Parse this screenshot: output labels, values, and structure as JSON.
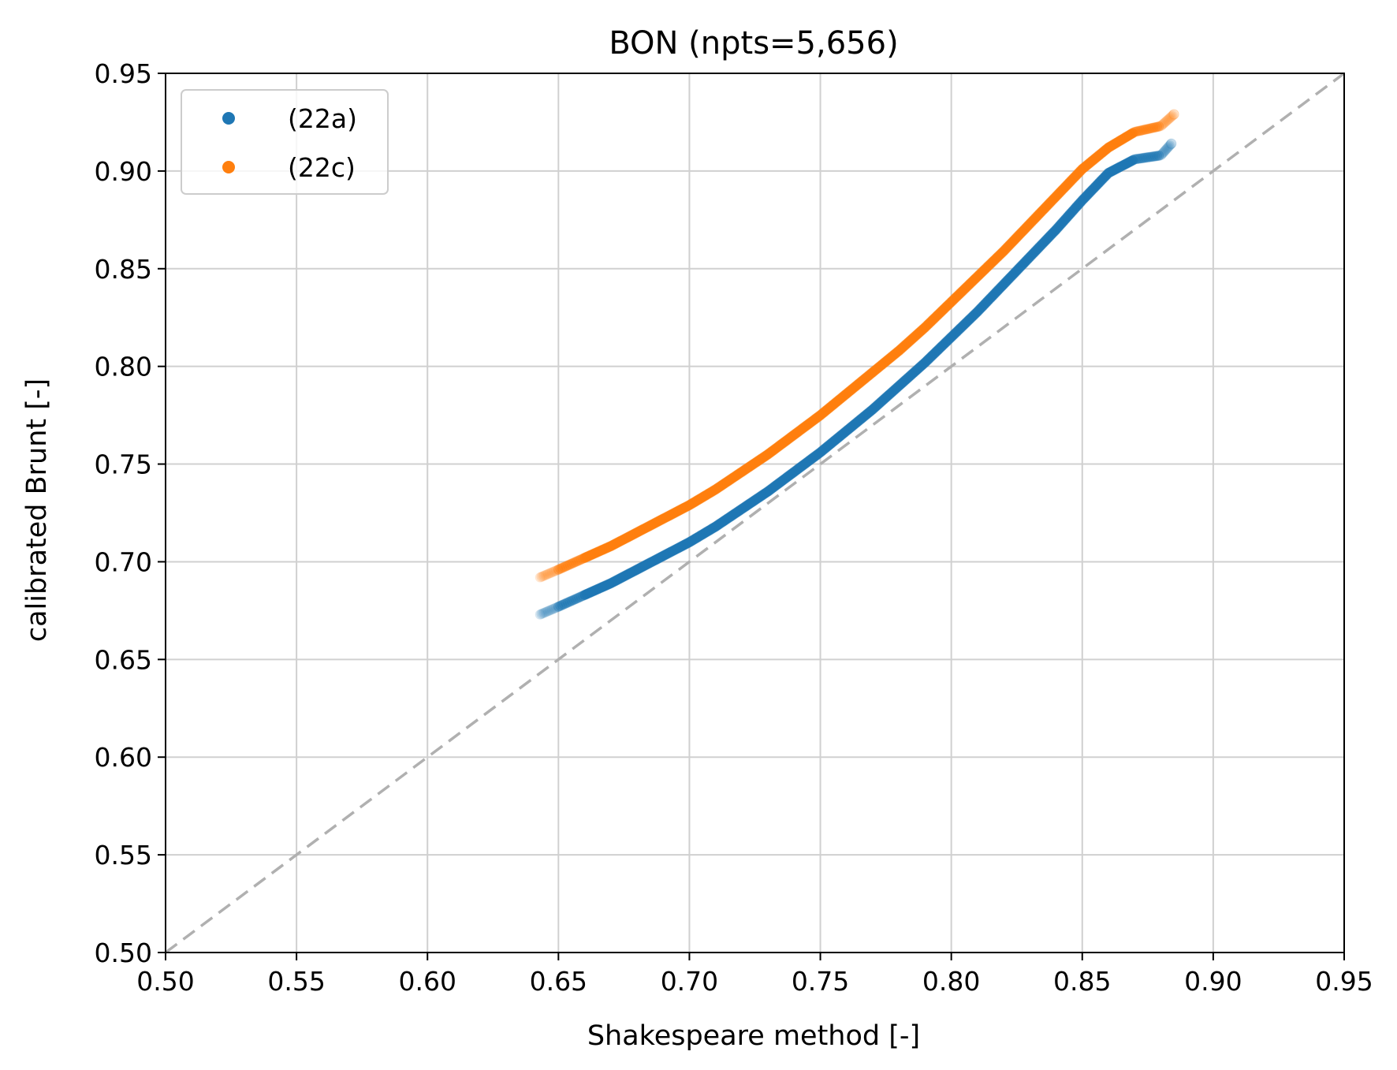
{
  "chart_data": {
    "type": "scatter",
    "title": "BON (npts=5,656)",
    "xlabel": "Shakespeare method [-]",
    "ylabel": "calibrated Brunt [-]",
    "xlim": [
      0.5,
      0.95
    ],
    "ylim": [
      0.5,
      0.95
    ],
    "xticks": [
      "0.50",
      "0.55",
      "0.60",
      "0.65",
      "0.70",
      "0.75",
      "0.80",
      "0.85",
      "0.90",
      "0.95"
    ],
    "yticks": [
      "0.50",
      "0.55",
      "0.60",
      "0.65",
      "0.70",
      "0.75",
      "0.80",
      "0.85",
      "0.90",
      "0.95"
    ],
    "grid": true,
    "legend_position": "top-left",
    "reference_line": {
      "style": "dashed",
      "color": "#b0b0b0",
      "from": [
        0.5,
        0.5
      ],
      "to": [
        0.95,
        0.95
      ]
    },
    "series": [
      {
        "name": "(22a)",
        "color": "#1f77b4",
        "x": [
          0.643,
          0.65,
          0.66,
          0.67,
          0.68,
          0.69,
          0.7,
          0.71,
          0.72,
          0.73,
          0.74,
          0.75,
          0.76,
          0.77,
          0.78,
          0.79,
          0.8,
          0.81,
          0.82,
          0.83,
          0.84,
          0.85,
          0.86,
          0.87,
          0.88,
          0.884
        ],
        "y": [
          0.673,
          0.677,
          0.683,
          0.689,
          0.696,
          0.703,
          0.71,
          0.718,
          0.727,
          0.736,
          0.746,
          0.756,
          0.767,
          0.778,
          0.79,
          0.802,
          0.815,
          0.828,
          0.842,
          0.856,
          0.87,
          0.885,
          0.899,
          0.906,
          0.908,
          0.914
        ]
      },
      {
        "name": "(22c)",
        "color": "#ff7f0e",
        "x": [
          0.643,
          0.65,
          0.66,
          0.67,
          0.68,
          0.69,
          0.7,
          0.71,
          0.72,
          0.73,
          0.74,
          0.75,
          0.76,
          0.77,
          0.78,
          0.79,
          0.8,
          0.81,
          0.82,
          0.83,
          0.84,
          0.85,
          0.86,
          0.87,
          0.88,
          0.885
        ],
        "y": [
          0.692,
          0.696,
          0.702,
          0.708,
          0.715,
          0.722,
          0.729,
          0.737,
          0.746,
          0.755,
          0.765,
          0.775,
          0.786,
          0.797,
          0.808,
          0.82,
          0.833,
          0.846,
          0.859,
          0.873,
          0.887,
          0.901,
          0.912,
          0.92,
          0.923,
          0.929
        ]
      }
    ]
  }
}
